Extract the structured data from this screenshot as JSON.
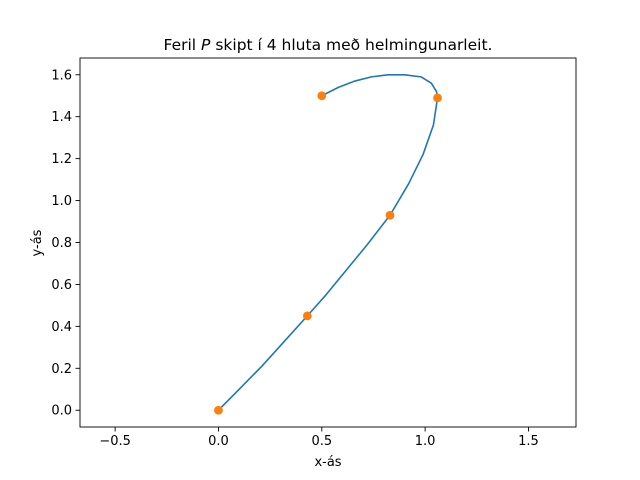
{
  "chart_data": {
    "type": "line",
    "title": {
      "before": "Feril ",
      "variable": "P",
      "after": " skipt í 4 hluta með helmingunarleit."
    },
    "xlabel": "x-ás",
    "ylabel": "y-ás",
    "xlim": [
      -0.67,
      1.73
    ],
    "ylim": [
      -0.08,
      1.68
    ],
    "grid": false,
    "x_ticks": [
      -0.5,
      0.0,
      0.5,
      1.0,
      1.5
    ],
    "x_tick_labels": [
      "−0.5",
      "0.0",
      "0.5",
      "1.0",
      "1.5"
    ],
    "y_ticks": [
      0.0,
      0.2,
      0.4,
      0.6,
      0.8,
      1.0,
      1.2,
      1.4,
      1.6
    ],
    "y_tick_labels": [
      "0.0",
      "0.2",
      "0.4",
      "0.6",
      "0.8",
      "1.0",
      "1.2",
      "1.4",
      "1.6"
    ],
    "colors": {
      "curve": "#1f77b4",
      "markers": "#ff7f0e"
    },
    "series": [
      {
        "kind": "curve",
        "x": [
          0.0,
          0.1,
          0.21,
          0.32,
          0.43,
          0.52,
          0.62,
          0.72,
          0.83,
          0.92,
          0.99,
          1.04,
          1.06,
          1.055,
          1.03,
          0.98,
          0.9,
          0.82,
          0.74,
          0.66,
          0.58,
          0.5
        ],
        "y": [
          0.0,
          0.1,
          0.21,
          0.33,
          0.45,
          0.55,
          0.67,
          0.79,
          0.93,
          1.08,
          1.22,
          1.36,
          1.49,
          1.52,
          1.56,
          1.59,
          1.6,
          1.6,
          1.59,
          1.57,
          1.54,
          1.5
        ]
      },
      {
        "kind": "markers",
        "x": [
          0.0,
          0.43,
          0.83,
          1.06,
          0.5
        ],
        "y": [
          0.0,
          0.45,
          0.93,
          1.49,
          1.5
        ]
      }
    ]
  }
}
